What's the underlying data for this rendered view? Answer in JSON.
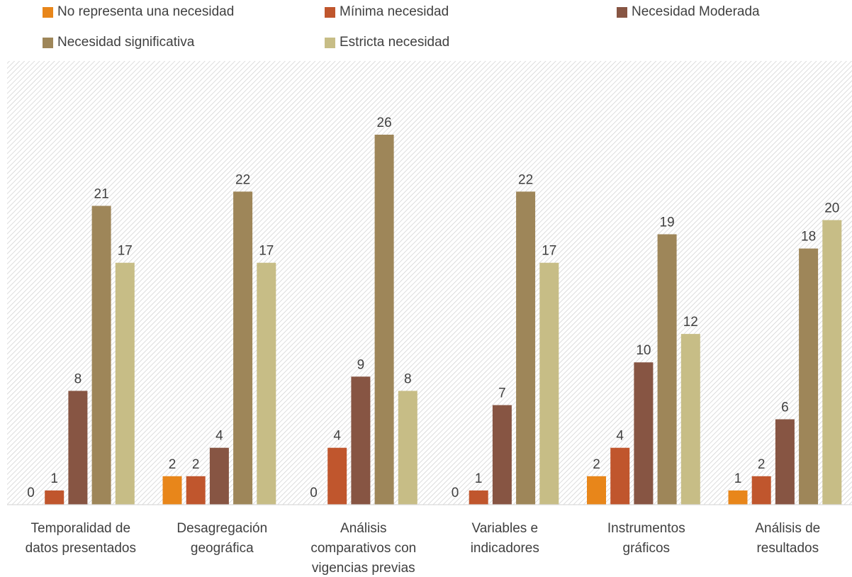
{
  "chart_data": {
    "type": "bar",
    "title": "",
    "xlabel": "",
    "ylabel": "",
    "ylim": [
      0,
      26
    ],
    "grid": false,
    "legend_position": "top",
    "categories": [
      [
        "Temporalidad de",
        "datos presentados"
      ],
      [
        "Desagregación",
        "geográfica"
      ],
      [
        "Análisis",
        "comparativos con",
        "vigencias previas"
      ],
      [
        "Variables e",
        "indicadores"
      ],
      [
        "Instrumentos",
        "gráficos"
      ],
      [
        "Análisis de",
        "resultados"
      ]
    ],
    "series": [
      {
        "name": "No representa una necesidad",
        "color": "#E8861A",
        "values": [
          0,
          2,
          0,
          0,
          2,
          1
        ]
      },
      {
        "name": "Mínima necesidad",
        "color": "#C0562D",
        "values": [
          1,
          2,
          4,
          1,
          4,
          2
        ]
      },
      {
        "name": "Necesidad Moderada",
        "color": "#875543",
        "values": [
          8,
          4,
          9,
          7,
          10,
          6
        ]
      },
      {
        "name": "Necesidad significativa",
        "color": "#9E8659",
        "values": [
          21,
          22,
          26,
          22,
          19,
          18
        ]
      },
      {
        "name": "Estricta necesidad",
        "color": "#C7BD86",
        "values": [
          17,
          17,
          8,
          17,
          12,
          20
        ]
      }
    ]
  }
}
